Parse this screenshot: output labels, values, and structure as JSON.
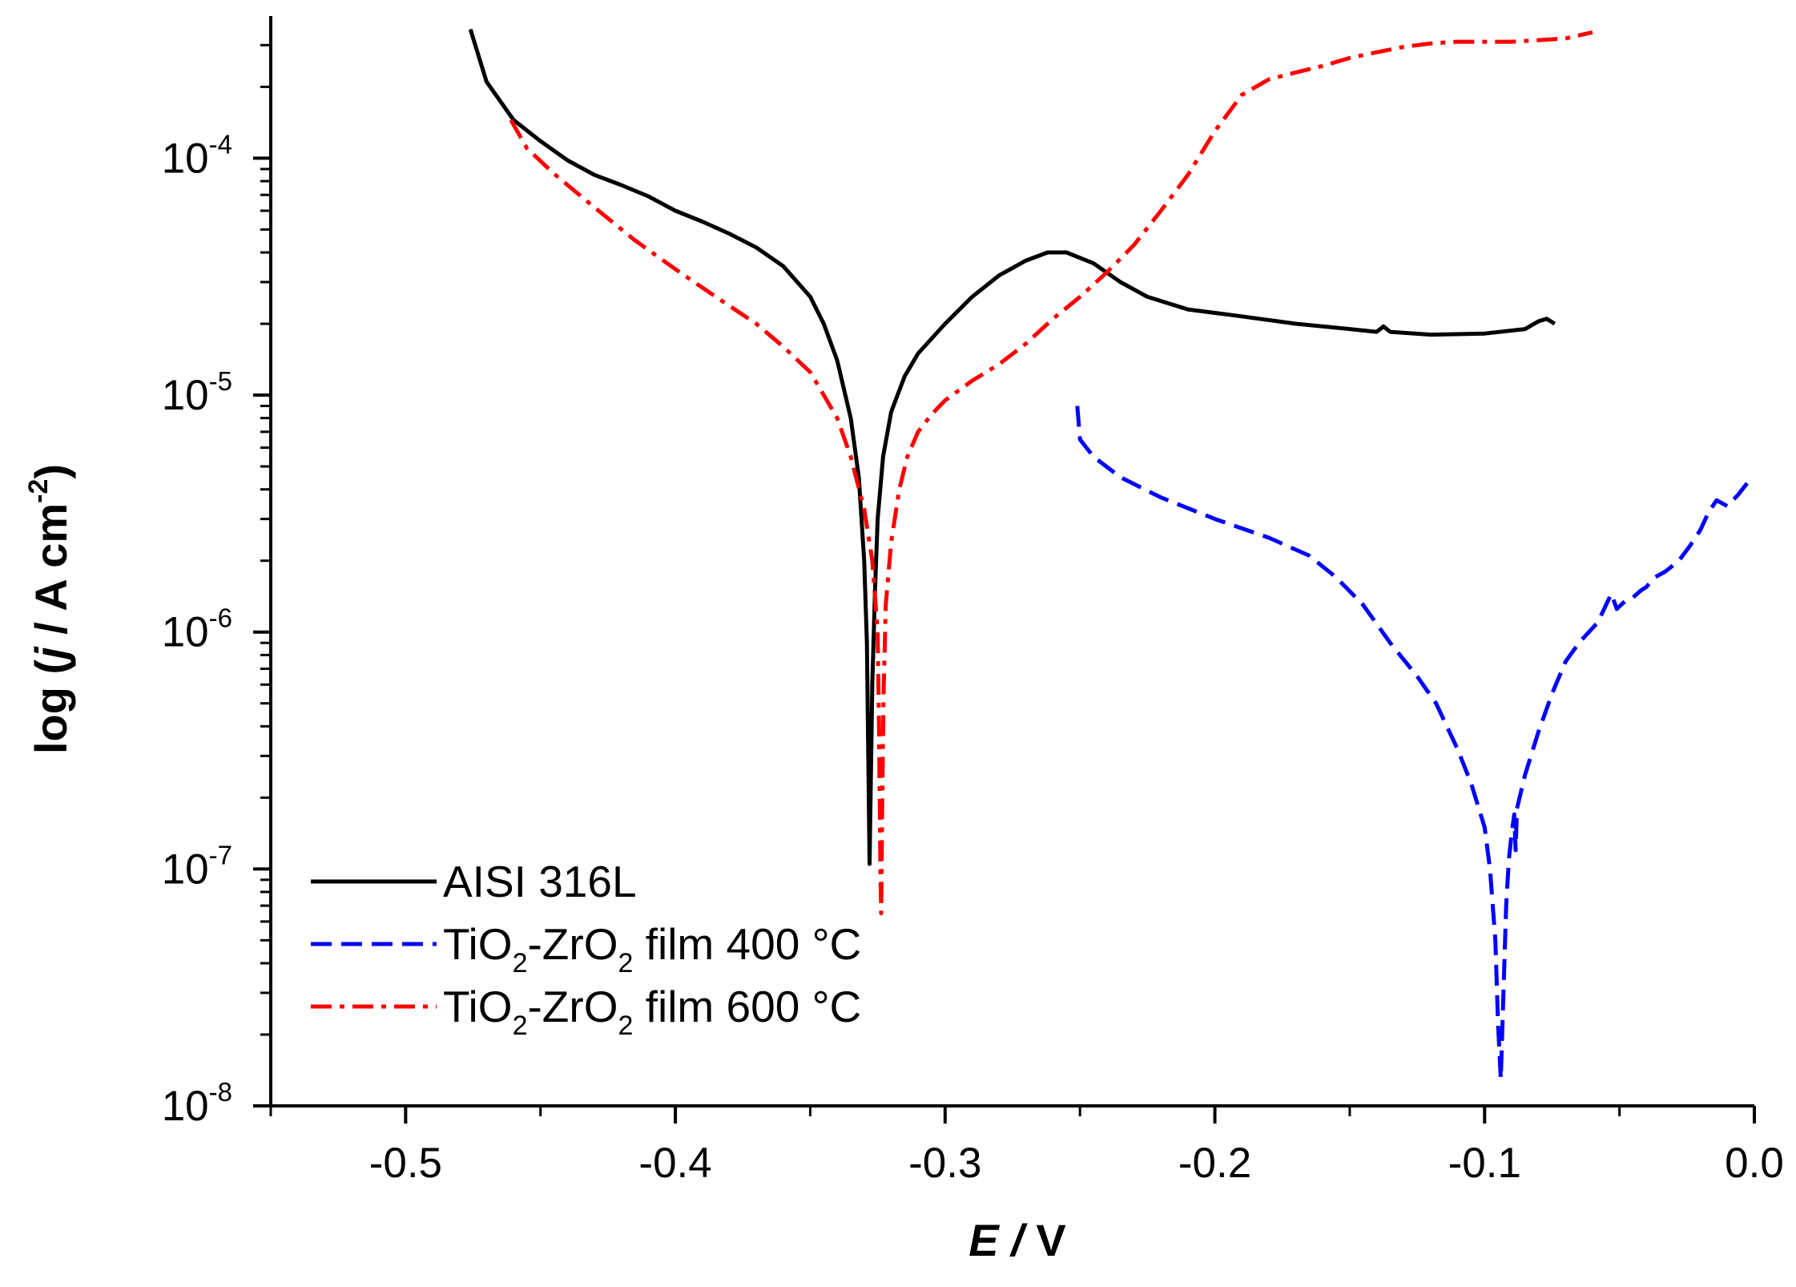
{
  "chart_data": {
    "type": "line",
    "title": "",
    "xlabel": {
      "var": "E",
      "sep": " / ",
      "unit": "V"
    },
    "ylabel": {
      "prefix": "log (",
      "var": "j",
      "sep": " / A cm",
      "sup": "-2",
      "suffix": ")"
    },
    "xlim": [
      -0.55,
      0.0
    ],
    "ylim_log10": [
      -8,
      -3.4
    ],
    "y_scale": "log",
    "x_ticks": [
      -0.5,
      -0.4,
      -0.3,
      -0.2,
      -0.1,
      0.0
    ],
    "x_tick_labels": [
      "-0.5",
      "-0.4",
      "-0.3",
      "-0.2",
      "-0.1",
      "0.0"
    ],
    "y_ticks": [
      {
        "exp": -8,
        "base": "10",
        "sup": "-8"
      },
      {
        "exp": -7,
        "base": "10",
        "sup": "-7"
      },
      {
        "exp": -6,
        "base": "10",
        "sup": "-6"
      },
      {
        "exp": -5,
        "base": "10",
        "sup": "-5"
      },
      {
        "exp": -4,
        "base": "10",
        "sup": "-4"
      }
    ],
    "legend_position": "bottom-left",
    "series": [
      {
        "name": "AISI 316L",
        "legend": {
          "parts": [
            "AISI 316L"
          ]
        },
        "color": "#000000",
        "dash": "solid",
        "points": [
          [
            -0.476,
            0.00035
          ],
          [
            -0.47,
            0.00021
          ],
          [
            -0.46,
            0.000145
          ],
          [
            -0.45,
            0.000118
          ],
          [
            -0.44,
            9.8e-05
          ],
          [
            -0.43,
            8.5e-05
          ],
          [
            -0.42,
            7.7e-05
          ],
          [
            -0.41,
            6.9e-05
          ],
          [
            -0.4,
            6e-05
          ],
          [
            -0.39,
            5.4e-05
          ],
          [
            -0.38,
            4.8e-05
          ],
          [
            -0.37,
            4.2e-05
          ],
          [
            -0.36,
            3.5e-05
          ],
          [
            -0.35,
            2.6e-05
          ],
          [
            -0.345,
            2e-05
          ],
          [
            -0.34,
            1.4e-05
          ],
          [
            -0.335,
            8e-06
          ],
          [
            -0.332,
            4.5e-06
          ],
          [
            -0.33,
            2e-06
          ],
          [
            -0.329,
            9e-07
          ],
          [
            -0.3285,
            3e-07
          ],
          [
            -0.328,
            1.05e-07
          ],
          [
            -0.3275,
            2.5e-07
          ],
          [
            -0.327,
            6e-07
          ],
          [
            -0.326,
            1.5e-06
          ],
          [
            -0.325,
            3e-06
          ],
          [
            -0.323,
            5.5e-06
          ],
          [
            -0.32,
            8.5e-06
          ],
          [
            -0.315,
            1.2e-05
          ],
          [
            -0.31,
            1.5e-05
          ],
          [
            -0.3,
            2e-05
          ],
          [
            -0.29,
            2.6e-05
          ],
          [
            -0.28,
            3.2e-05
          ],
          [
            -0.27,
            3.7e-05
          ],
          [
            -0.262,
            4e-05
          ],
          [
            -0.255,
            4e-05
          ],
          [
            -0.245,
            3.6e-05
          ],
          [
            -0.235,
            3e-05
          ],
          [
            -0.225,
            2.6e-05
          ],
          [
            -0.21,
            2.3e-05
          ],
          [
            -0.19,
            2.15e-05
          ],
          [
            -0.17,
            2e-05
          ],
          [
            -0.15,
            1.9e-05
          ],
          [
            -0.14,
            1.85e-05
          ],
          [
            -0.1375,
            1.95e-05
          ],
          [
            -0.135,
            1.85e-05
          ],
          [
            -0.12,
            1.8e-05
          ],
          [
            -0.1,
            1.82e-05
          ],
          [
            -0.085,
            1.9e-05
          ],
          [
            -0.08,
            2.05e-05
          ],
          [
            -0.077,
            2.1e-05
          ],
          [
            -0.074,
            2e-05
          ]
        ]
      },
      {
        "name": "TiO2-ZrO2 film 400 °C",
        "legend": {
          "parts": [
            "TiO",
            "2",
            "-ZrO",
            "2",
            " film 400 °C"
          ]
        },
        "color": "#0000ff",
        "dash": "dashed",
        "points": [
          [
            -0.251,
            9e-06
          ],
          [
            -0.25,
            6.5e-06
          ],
          [
            -0.245,
            5.5e-06
          ],
          [
            -0.235,
            4.5e-06
          ],
          [
            -0.22,
            3.7e-06
          ],
          [
            -0.2,
            3e-06
          ],
          [
            -0.18,
            2.5e-06
          ],
          [
            -0.165,
            2.1e-06
          ],
          [
            -0.155,
            1.7e-06
          ],
          [
            -0.145,
            1.3e-06
          ],
          [
            -0.135,
            9e-07
          ],
          [
            -0.125,
            6.5e-07
          ],
          [
            -0.118,
            5e-07
          ],
          [
            -0.11,
            3.2e-07
          ],
          [
            -0.105,
            2.3e-07
          ],
          [
            -0.1,
            1.5e-07
          ],
          [
            -0.098,
            1e-07
          ],
          [
            -0.096,
            5e-08
          ],
          [
            -0.095,
            2.2e-08
          ],
          [
            -0.094,
            1.3e-08
          ],
          [
            -0.093,
            3e-08
          ],
          [
            -0.092,
            7e-08
          ],
          [
            -0.091,
            1.1e-07
          ],
          [
            -0.09,
            1.4e-07
          ],
          [
            -0.089,
            1.7e-07
          ],
          [
            -0.0885,
            1.2e-07
          ],
          [
            -0.088,
            1.8e-07
          ],
          [
            -0.085,
            2.5e-07
          ],
          [
            -0.08,
            3.8e-07
          ],
          [
            -0.075,
            5.5e-07
          ],
          [
            -0.07,
            7.5e-07
          ],
          [
            -0.065,
            9e-07
          ],
          [
            -0.058,
            1.1e-06
          ],
          [
            -0.055,
            1.3e-06
          ],
          [
            -0.053,
            1.45e-06
          ],
          [
            -0.051,
            1.25e-06
          ],
          [
            -0.048,
            1.35e-06
          ],
          [
            -0.045,
            1.4e-06
          ],
          [
            -0.042,
            1.5e-06
          ],
          [
            -0.04,
            1.55e-06
          ],
          [
            -0.037,
            1.7e-06
          ],
          [
            -0.033,
            1.8e-06
          ],
          [
            -0.028,
            2e-06
          ],
          [
            -0.024,
            2.3e-06
          ],
          [
            -0.02,
            2.7e-06
          ],
          [
            -0.017,
            3.2e-06
          ],
          [
            -0.014,
            3.6e-06
          ],
          [
            -0.01,
            3.4e-06
          ],
          [
            -0.006,
            3.8e-06
          ],
          [
            -0.003,
            4.2e-06
          ],
          [
            -0.001,
            4.5e-06
          ]
        ]
      },
      {
        "name": "TiO2-ZrO2 film 600 °C",
        "legend": {
          "parts": [
            "TiO",
            "2",
            "-ZrO",
            "2",
            " film 600 °C"
          ]
        },
        "color": "#ff0000",
        "dash": "dashdot",
        "points": [
          [
            -0.461,
            0.000145
          ],
          [
            -0.455,
            0.00011
          ],
          [
            -0.445,
            8.6e-05
          ],
          [
            -0.43,
            6.2e-05
          ],
          [
            -0.415,
            4.5e-05
          ],
          [
            -0.4,
            3.4e-05
          ],
          [
            -0.385,
            2.6e-05
          ],
          [
            -0.37,
            2e-05
          ],
          [
            -0.36,
            1.6e-05
          ],
          [
            -0.35,
            1.25e-05
          ],
          [
            -0.345,
            1e-05
          ],
          [
            -0.34,
            8e-06
          ],
          [
            -0.335,
            5.5e-06
          ],
          [
            -0.33,
            3.3e-06
          ],
          [
            -0.327,
            2e-06
          ],
          [
            -0.325,
            1e-06
          ],
          [
            -0.3245,
            4e-07
          ],
          [
            -0.324,
            1e-07
          ],
          [
            -0.3237,
            6.5e-08
          ],
          [
            -0.3233,
            2e-07
          ],
          [
            -0.3228,
            5.5e-07
          ],
          [
            -0.322,
            1.3e-06
          ],
          [
            -0.32,
            2.4e-06
          ],
          [
            -0.317,
            4e-06
          ],
          [
            -0.314,
            5.5e-06
          ],
          [
            -0.31,
            7e-06
          ],
          [
            -0.305,
            8.3e-06
          ],
          [
            -0.3,
            9.5e-06
          ],
          [
            -0.29,
            1.15e-05
          ],
          [
            -0.28,
            1.35e-05
          ],
          [
            -0.27,
            1.65e-05
          ],
          [
            -0.26,
            2.1e-05
          ],
          [
            -0.25,
            2.6e-05
          ],
          [
            -0.24,
            3.3e-05
          ],
          [
            -0.23,
            4.3e-05
          ],
          [
            -0.22,
            6e-05
          ],
          [
            -0.21,
            8.5e-05
          ],
          [
            -0.2,
            0.00013
          ],
          [
            -0.19,
            0.000185
          ],
          [
            -0.18,
            0.000215
          ],
          [
            -0.17,
            0.00023
          ],
          [
            -0.16,
            0.000245
          ],
          [
            -0.15,
            0.000265
          ],
          [
            -0.14,
            0.00028
          ],
          [
            -0.13,
            0.000295
          ],
          [
            -0.12,
            0.000305
          ],
          [
            -0.11,
            0.00031
          ],
          [
            -0.1,
            0.00031
          ],
          [
            -0.09,
            0.00031
          ],
          [
            -0.08,
            0.000315
          ],
          [
            -0.07,
            0.00032
          ],
          [
            -0.06,
            0.00034
          ]
        ]
      }
    ]
  }
}
